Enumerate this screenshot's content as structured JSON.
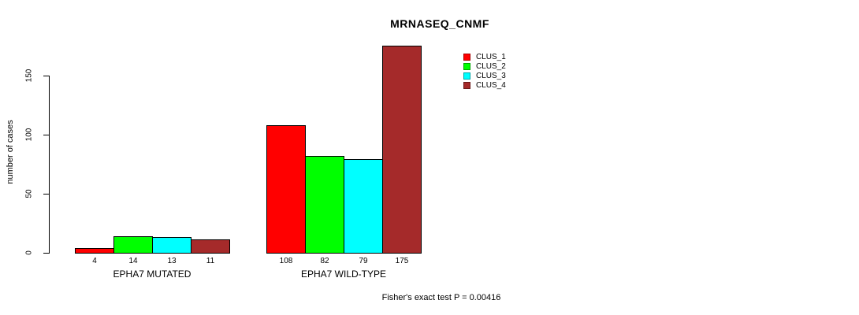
{
  "chart_data": {
    "type": "bar",
    "title": "MRNASEQ_CNMF",
    "ylabel": "number of cases",
    "xlabel": "",
    "categories": [
      "EPHA7 MUTATED",
      "EPHA7 WILD-TYPE"
    ],
    "series": [
      {
        "name": "CLUS_1",
        "color": "#FF0000",
        "values": [
          4,
          108
        ]
      },
      {
        "name": "CLUS_2",
        "color": "#00FF00",
        "values": [
          14,
          82
        ]
      },
      {
        "name": "CLUS_3",
        "color": "#00FFFF",
        "values": [
          13,
          79
        ]
      },
      {
        "name": "CLUS_4",
        "color": "#A52A2A",
        "values": [
          11,
          175
        ]
      }
    ],
    "bar_value_labels_shown": true,
    "yticks": [
      0,
      50,
      100,
      150
    ],
    "ylim": [
      0,
      175
    ],
    "grid": false,
    "legend_position": "top-right",
    "annotation": "Fisher's exact test P = 0.00416"
  }
}
